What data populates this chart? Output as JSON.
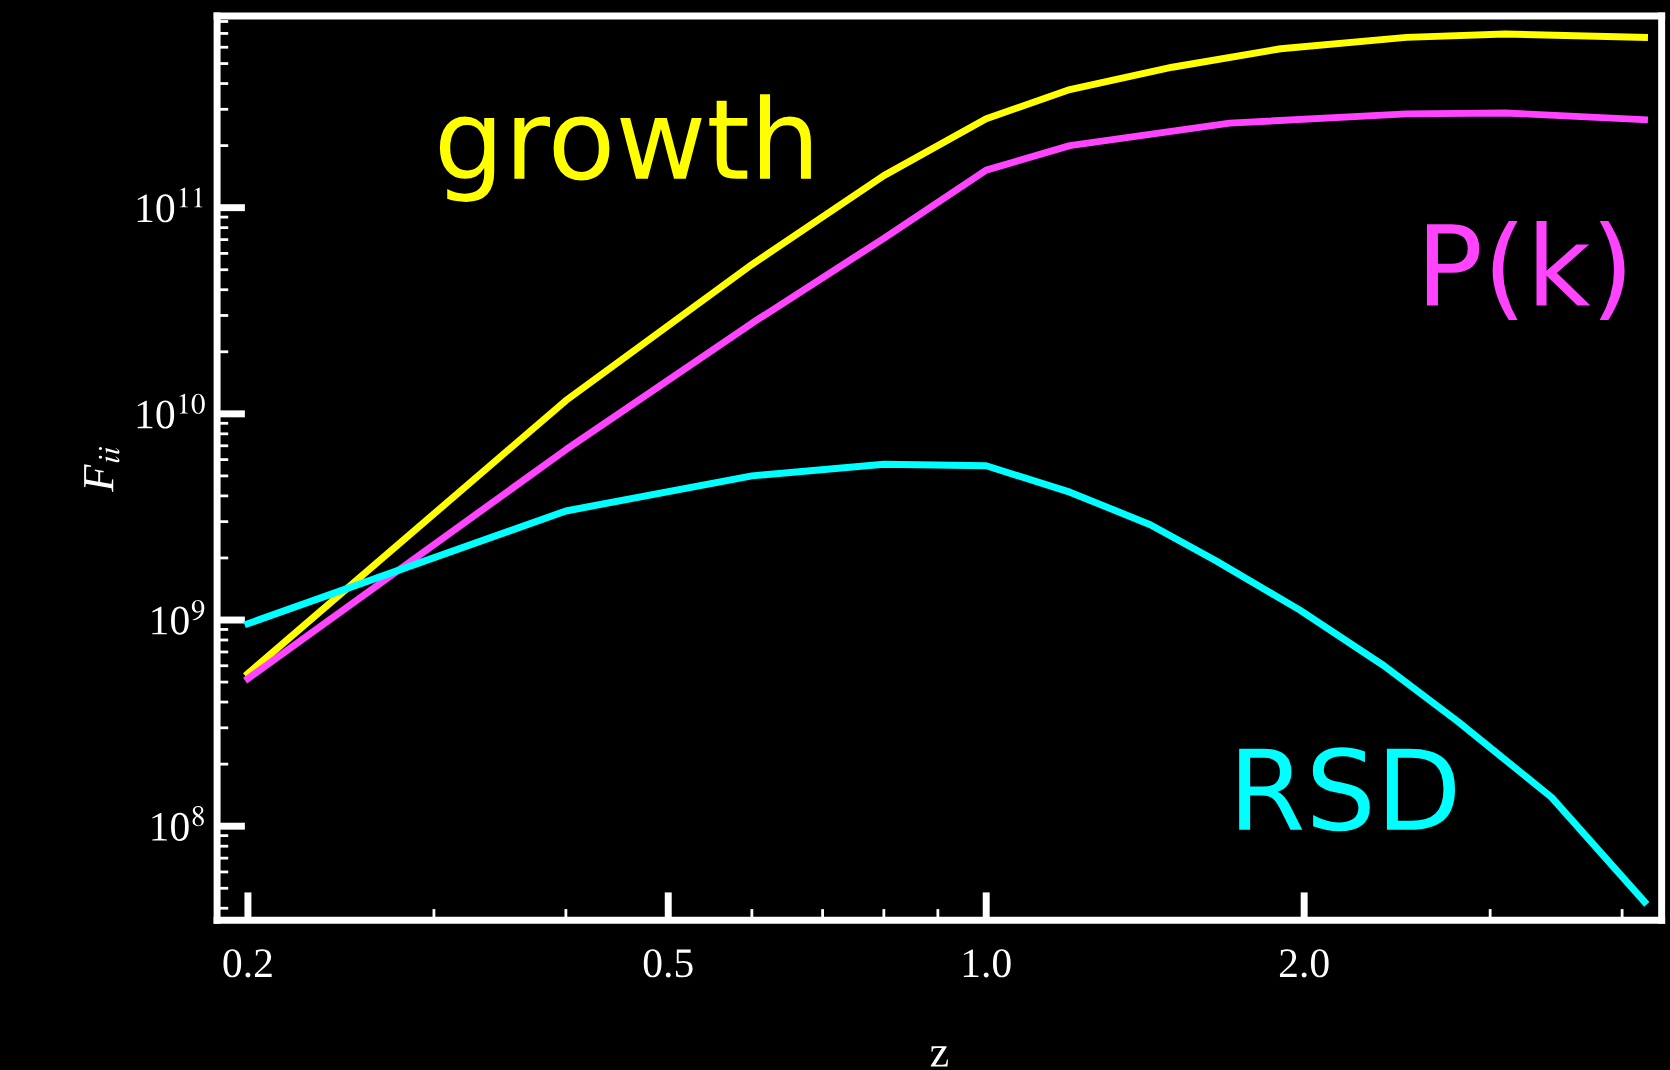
{
  "chart_data": {
    "type": "line",
    "xlabel": "z",
    "ylabel": "F$_{ii}$",
    "log": "xy",
    "grid": false,
    "legend": false,
    "marker": "none",
    "line_style": "solid",
    "xlim": [
      0.187,
      4.36
    ],
    "ylim": [
      35000000.0,
      850000000000.0
    ],
    "xticks": [
      0.2,
      0.5,
      {
        "value": 1,
        "label": "1.0"
      },
      {
        "value": 2,
        "label": "2.0"
      }
    ],
    "yticks": [
      {
        "value": 100000000.0,
        "label": "10$^{8}$"
      },
      {
        "value": 1000000000.0,
        "label": "10$^{9}$"
      },
      {
        "value": 10000000000.0,
        "label": "10$^{10}$"
      },
      {
        "value": 100000000000.0,
        "label": "10$^{11}$"
      }
    ],
    "series": [
      {
        "name": "growth",
        "color": "#ffff00",
        "x": [
          0.2,
          0.4,
          0.6,
          0.8,
          1.0,
          1.2,
          1.5,
          1.9,
          2.5,
          3.1,
          4.2
        ],
        "values": [
          550000000.0,
          11600000000.0,
          53000000000.0,
          143000000000.0,
          270000000000.0,
          374000000000.0,
          480000000000.0,
          590000000000.0,
          670000000000.0,
          695000000000.0,
          670000000000.0
        ]
      },
      {
        "name": "P(k)",
        "color": "#ff44ff",
        "x": [
          0.2,
          0.4,
          0.6,
          0.8,
          1.0,
          1.2,
          1.7,
          2.5,
          3.1,
          4.2
        ],
        "values": [
          520000000.0,
          6700000000.0,
          27500000000.0,
          71000000000.0,
          152000000000.0,
          200000000000.0,
          257000000000.0,
          285000000000.0,
          288000000000.0,
          267000000000.0
        ]
      },
      {
        "name": "RSD",
        "color": "#00ffff",
        "x": [
          0.2,
          0.4,
          0.6,
          0.8,
          1.0,
          1.2,
          1.43,
          1.65,
          1.98,
          2.38,
          2.8,
          3.43,
          4.2
        ],
        "values": [
          960000000.0,
          3380000000.0,
          5000000000.0,
          5700000000.0,
          5600000000.0,
          4170000000.0,
          2900000000.0,
          1940000000.0,
          1120000000.0,
          600000000.0,
          320000000.0,
          138000000.0,
          43000000.0
        ]
      }
    ]
  }
}
